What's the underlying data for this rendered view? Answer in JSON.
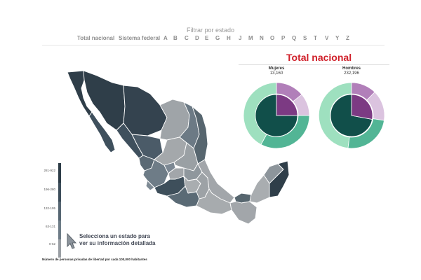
{
  "filter": {
    "title": "Filtrar por estado",
    "options": [
      {
        "label": "Total nacional"
      },
      {
        "label": "Sistema federal"
      },
      {
        "label": "A"
      },
      {
        "label": "B"
      },
      {
        "label": "C"
      },
      {
        "label": "D"
      },
      {
        "label": "E"
      },
      {
        "label": "G"
      },
      {
        "label": "H"
      },
      {
        "label": "J"
      },
      {
        "label": "M"
      },
      {
        "label": "N"
      },
      {
        "label": "O"
      },
      {
        "label": "P"
      },
      {
        "label": "Q"
      },
      {
        "label": "S"
      },
      {
        "label": "T"
      },
      {
        "label": "V"
      },
      {
        "label": "Y"
      },
      {
        "label": "Z"
      }
    ]
  },
  "national": {
    "title": "Total nacional",
    "women": {
      "label": "Mujeres",
      "value": "13,160"
    },
    "men": {
      "label": "Hombres",
      "value": "232,196"
    }
  },
  "legend": {
    "ticks": [
      "281-922",
      "196-280",
      "132-195",
      "63-131",
      "0-62"
    ],
    "colors": [
      "#2e3d48",
      "#3d4e5b",
      "#566672",
      "#6e7c87",
      "#9a9fa4"
    ]
  },
  "hint": "Selecciona un estado para ver su información detallada",
  "footnote": "Número de personas privadas de libertad por cada 100,000 habitantes",
  "colors": {
    "accent_red": "#d0202a",
    "teal_dark": "#114f4a",
    "teal_mid": "#4fb392",
    "teal_light": "#9ee0bf",
    "purple_dark": "#7c3a83",
    "purple_mid": "#b07eb8",
    "purple_light": "#d8bfdc"
  },
  "icons": [
    "cursor-pointer-icon"
  ]
}
